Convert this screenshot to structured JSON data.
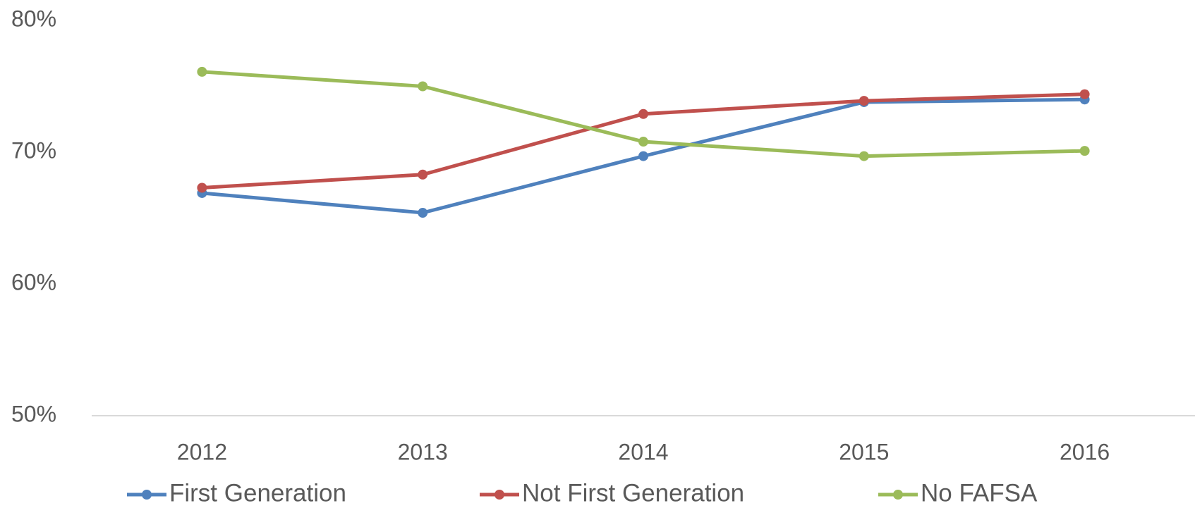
{
  "chart_data": {
    "type": "line",
    "categories": [
      "2012",
      "2013",
      "2014",
      "2015",
      "2016"
    ],
    "series": [
      {
        "name": "First Generation",
        "color": "#4f81bd",
        "values": [
          66.9,
          65.4,
          69.7,
          73.8,
          74.0
        ]
      },
      {
        "name": "Not First Generation",
        "color": "#c0504d",
        "values": [
          67.3,
          68.3,
          72.9,
          73.9,
          74.4
        ]
      },
      {
        "name": "No FAFSA",
        "color": "#9bbb59",
        "values": [
          76.1,
          75.0,
          70.8,
          69.7,
          70.1
        ]
      }
    ],
    "ylim": [
      50,
      80
    ],
    "yticks": [
      {
        "value": 50,
        "label": "50%"
      },
      {
        "value": 60,
        "label": "60%"
      },
      {
        "value": 70,
        "label": "70%"
      },
      {
        "value": 80,
        "label": "80%"
      }
    ],
    "grid": false,
    "legend": "bottom"
  }
}
